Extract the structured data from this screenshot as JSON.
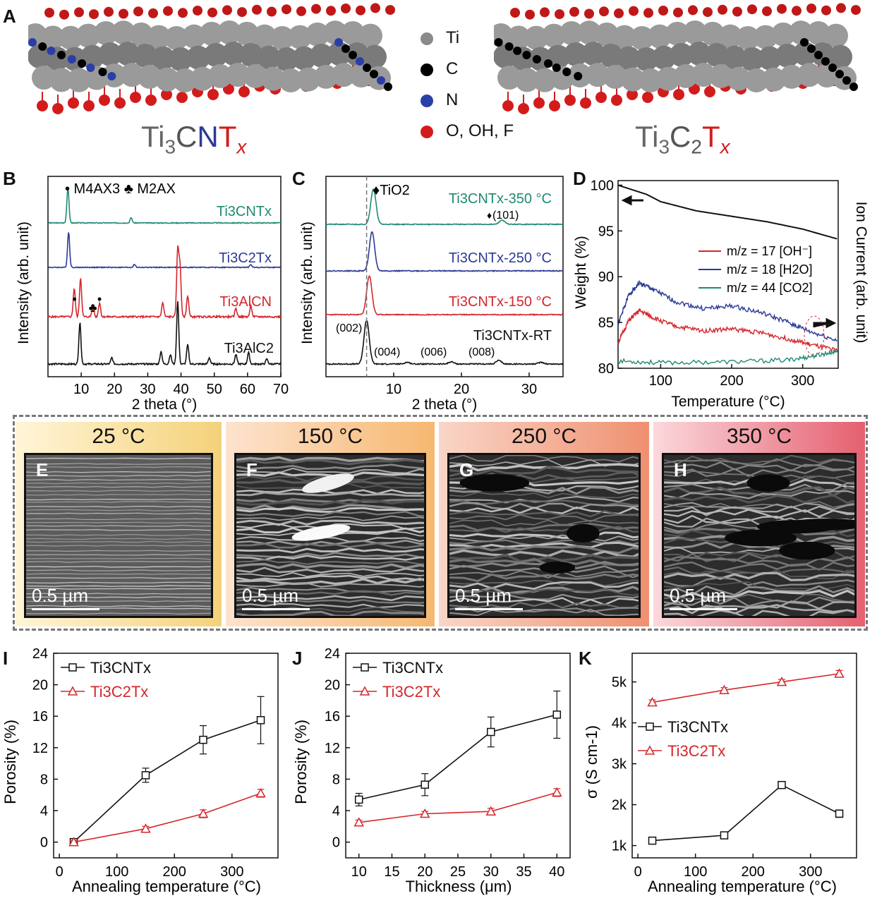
{
  "panel_labels": {
    "A": "A",
    "B": "B",
    "C": "C",
    "D": "D",
    "E": "E",
    "F": "F",
    "G": "G",
    "H": "H",
    "I": "I",
    "J": "J",
    "K": "K"
  },
  "panel_a": {
    "left_title_parts": [
      "Ti",
      "3",
      "C",
      "N",
      "T",
      "x"
    ],
    "right_title_parts": [
      "Ti",
      "3",
      "C",
      "2",
      "T",
      "x"
    ],
    "legend": [
      {
        "label": "Ti",
        "color": "#8a8a8a"
      },
      {
        "label": "C",
        "color": "#000000"
      },
      {
        "label": "N",
        "color": "#2a3ea8"
      },
      {
        "label": "O, OH, F",
        "color": "#d21c1c"
      }
    ]
  },
  "sem": [
    {
      "temp": "25 °C",
      "letter": "E",
      "scale": "0.5 µm",
      "bg_from": "#fff5d8",
      "bg_to": "#f4d27a"
    },
    {
      "temp": "150 °C",
      "letter": "F",
      "scale": "0.5 µm",
      "bg_from": "#fde3cf",
      "bg_to": "#f6b870"
    },
    {
      "temp": "250 °C",
      "letter": "G",
      "scale": "0.5 µm",
      "bg_from": "#f9d6c8",
      "bg_to": "#ef9070"
    },
    {
      "temp": "350 °C",
      "letter": "H",
      "scale": "0.5 µm",
      "bg_from": "#fbd8dc",
      "bg_to": "#e56070"
    }
  ],
  "chart_data": [
    {
      "panel": "B",
      "type": "line",
      "xlabel": "2 theta (°)",
      "ylabel": "Intensity (arb. unit)",
      "xlim": [
        0,
        70
      ],
      "xticks": [
        10,
        20,
        30,
        40,
        50,
        60,
        70
      ],
      "markers_legend": "• M4AX3 ♣ M2AX",
      "series": [
        {
          "name": "Ti3CNTx",
          "color": "#1f8a74",
          "peaks": [
            [
              6,
              1.0
            ],
            [
              25,
              0.15
            ]
          ]
        },
        {
          "name": "Ti3C2Tx",
          "color": "#2c3a96",
          "peaks": [
            [
              6.2,
              1.0
            ],
            [
              26,
              0.08
            ],
            [
              61,
              0.08
            ]
          ]
        },
        {
          "name": "Ti3AlCN",
          "color": "#d5262c",
          "peaks": [
            [
              7.9,
              0.4
            ],
            [
              9.8,
              0.55
            ],
            [
              13.5,
              0.15
            ],
            [
              15.5,
              0.2
            ],
            [
              34.5,
              0.2
            ],
            [
              39,
              0.95
            ],
            [
              39.7,
              0.7
            ],
            [
              42,
              0.3
            ],
            [
              56.5,
              0.12
            ],
            [
              61,
              0.15
            ]
          ]
        },
        {
          "name": "Ti3AlC2",
          "color": "#111111",
          "peaks": [
            [
              9.6,
              0.65
            ],
            [
              19.2,
              0.1
            ],
            [
              34,
              0.2
            ],
            [
              36.8,
              0.15
            ],
            [
              39,
              1.0
            ],
            [
              42,
              0.3
            ],
            [
              48.5,
              0.1
            ],
            [
              56.5,
              0.15
            ],
            [
              60.3,
              0.18
            ],
            [
              65.8,
              0.08
            ]
          ]
        }
      ]
    },
    {
      "panel": "C",
      "type": "line",
      "xlabel": "2 theta (°)",
      "ylabel": "Intensity (arb. unit)",
      "xlim": [
        0,
        35
      ],
      "xticks": [
        10,
        20,
        30
      ],
      "marker_legend": "♦TiO2",
      "series": [
        {
          "name": "Ti3CNTx-350 °C",
          "color": "#1f8a74",
          "peaks": [
            [
              7.0,
              1.0
            ],
            [
              26,
              0.12
            ]
          ]
        },
        {
          "name": "Ti3CNTx-250 °C",
          "color": "#2c3a96",
          "peaks": [
            [
              6.8,
              1.0
            ]
          ]
        },
        {
          "name": "Ti3CNTx-150 °C",
          "color": "#d5262c",
          "peaks": [
            [
              6.4,
              1.0
            ]
          ]
        },
        {
          "name": "Ti3CNTx-RT",
          "color": "#111111",
          "peaks": [
            [
              6.0,
              1.0
            ],
            [
              12,
              0.04
            ],
            [
              18.5,
              0.05
            ],
            [
              25.5,
              0.08
            ],
            [
              31.8,
              0.04
            ]
          ]
        }
      ],
      "annotations": [
        "(101)",
        "(002)",
        "(004)",
        "(006)",
        "(008)"
      ],
      "dashed_x": 6.0
    },
    {
      "panel": "D",
      "type": "line",
      "xlabel": "Temperature (°C)",
      "ylabel": "Weight (%)",
      "y2label": "Ion Current (arb. unit)",
      "xlim": [
        40,
        350
      ],
      "ylim": [
        80,
        100.5
      ],
      "xticks": [
        100,
        200,
        300
      ],
      "yticks": [
        80,
        85,
        90,
        95,
        100
      ],
      "series": [
        {
          "name": "Weight",
          "color": "#111111",
          "points": [
            [
              40,
              100
            ],
            [
              60,
              99.5
            ],
            [
              80,
              99.0
            ],
            [
              100,
              98.2
            ],
            [
              150,
              97.2
            ],
            [
              200,
              96.6
            ],
            [
              250,
              96.0
            ],
            [
              300,
              95.2
            ],
            [
              350,
              94.1
            ]
          ]
        },
        {
          "name": "m/z = 17 [OH⁻]",
          "color": "#d5262c",
          "points": [
            [
              40,
              82.8
            ],
            [
              55,
              85.2
            ],
            [
              70,
              86.3
            ],
            [
              90,
              85.5
            ],
            [
              120,
              84.6
            ],
            [
              160,
              84.1
            ],
            [
              200,
              84.3
            ],
            [
              240,
              83.9
            ],
            [
              280,
              83.2
            ],
            [
              310,
              82.6
            ],
            [
              350,
              81.9
            ]
          ]
        },
        {
          "name": "m/z = 18 [H2O]",
          "color": "#2c3a96",
          "points": [
            [
              40,
              84.8
            ],
            [
              55,
              88.0
            ],
            [
              70,
              89.3
            ],
            [
              90,
              88.6
            ],
            [
              120,
              87.3
            ],
            [
              160,
              86.5
            ],
            [
              200,
              86.8
            ],
            [
              240,
              86.1
            ],
            [
              280,
              85.0
            ],
            [
              310,
              84.0
            ],
            [
              350,
              83.0
            ]
          ]
        },
        {
          "name": "m/z = 44 [CO2]",
          "color": "#1f8a74",
          "points": [
            [
              40,
              80.8
            ],
            [
              100,
              80.6
            ],
            [
              200,
              80.7
            ],
            [
              280,
              80.9
            ],
            [
              320,
              81.4
            ],
            [
              350,
              81.9
            ]
          ]
        }
      ]
    },
    {
      "panel": "I",
      "type": "line",
      "xlabel": "Annealing temperature (°C)",
      "ylabel": "Porosity (%)",
      "xlim": [
        -10,
        380
      ],
      "ylim": [
        -2,
        24
      ],
      "xticks": [
        0,
        100,
        200,
        300
      ],
      "yticks": [
        0,
        4,
        8,
        12,
        16,
        20,
        24
      ],
      "series": [
        {
          "name": "Ti3CNTx",
          "color": "#111111",
          "marker": "square",
          "x": [
            25,
            150,
            250,
            350
          ],
          "y": [
            0,
            8.5,
            13,
            15.5
          ],
          "err": [
            0.3,
            0.9,
            1.8,
            3.0
          ]
        },
        {
          "name": "Ti3C2Tx",
          "color": "#d5262c",
          "marker": "triangle",
          "x": [
            25,
            150,
            250,
            350
          ],
          "y": [
            0,
            1.7,
            3.6,
            6.2
          ],
          "err": [
            0.2,
            0.3,
            0.5,
            0.5
          ]
        }
      ]
    },
    {
      "panel": "J",
      "type": "line",
      "xlabel": "Thickness (μm)",
      "ylabel": "Porosity (%)",
      "xlim": [
        8,
        42
      ],
      "ylim": [
        -2,
        24
      ],
      "xticks": [
        10,
        15,
        20,
        25,
        30,
        35,
        40
      ],
      "yticks": [
        0,
        4,
        8,
        12,
        16,
        20,
        24
      ],
      "series": [
        {
          "name": "Ti3CNTx",
          "color": "#111111",
          "marker": "square",
          "x": [
            10,
            20,
            30,
            40
          ],
          "y": [
            5.4,
            7.3,
            14.0,
            16.2
          ],
          "err": [
            0.8,
            1.4,
            1.9,
            3.0
          ]
        },
        {
          "name": "Ti3C2Tx",
          "color": "#d5262c",
          "marker": "triangle",
          "x": [
            10,
            20,
            30,
            40
          ],
          "y": [
            2.5,
            3.6,
            3.9,
            6.3
          ],
          "err": [
            0.3,
            0.3,
            0.4,
            0.5
          ]
        }
      ]
    },
    {
      "panel": "K",
      "type": "line",
      "xlabel": "Annealing temperature (°C)",
      "ylabel": "σ (S cm-1)",
      "xlim": [
        -10,
        380
      ],
      "ylim": [
        700,
        5700
      ],
      "xticks": [
        0,
        100,
        200,
        300
      ],
      "yticks": [
        1000,
        2000,
        3000,
        4000,
        5000
      ],
      "ytick_labels": [
        "1k",
        "2k",
        "3k",
        "4k",
        "5k"
      ],
      "series": [
        {
          "name": "Ti3CNTx",
          "color": "#111111",
          "marker": "square",
          "x": [
            25,
            150,
            250,
            350
          ],
          "y": [
            1120,
            1250,
            2480,
            1780
          ],
          "err": [
            30,
            40,
            50,
            90
          ]
        },
        {
          "name": "Ti3C2Tx",
          "color": "#d5262c",
          "marker": "triangle",
          "x": [
            25,
            150,
            250,
            350
          ],
          "y": [
            4500,
            4800,
            5000,
            5200
          ],
          "err": [
            60,
            60,
            60,
            80
          ]
        }
      ]
    }
  ]
}
